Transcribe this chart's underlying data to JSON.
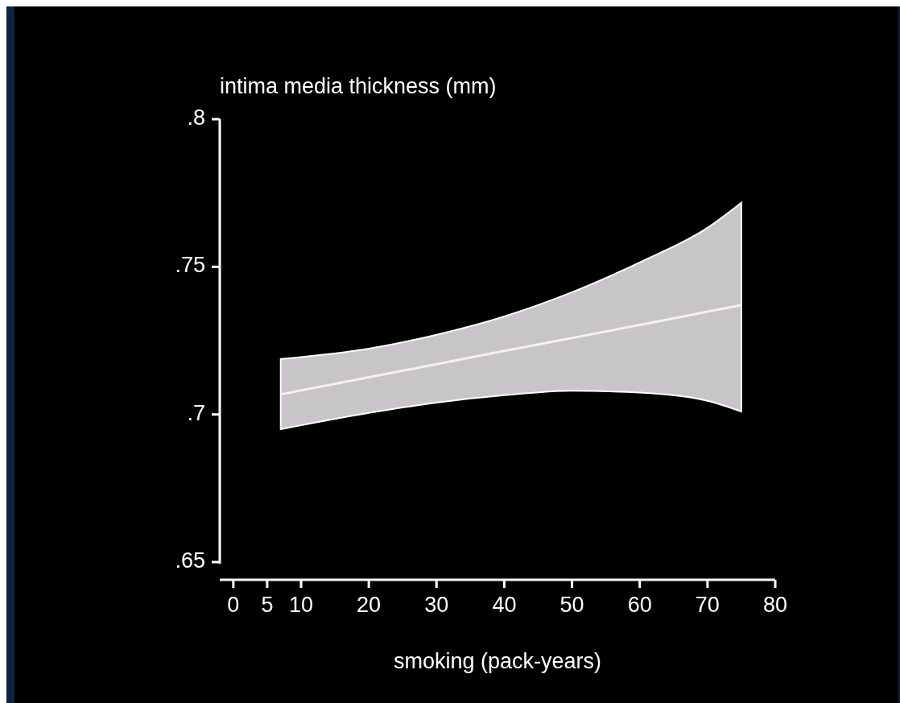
{
  "chart_data": {
    "type": "line",
    "xlabel": "smoking (pack-years)",
    "ylabel": "intima media thickness (mm)",
    "xlim": [
      -2,
      80
    ],
    "ylim": [
      0.644,
      0.8
    ],
    "xticks": [
      0,
      5,
      10,
      20,
      30,
      40,
      50,
      60,
      70,
      80
    ],
    "yticks": [
      {
        "value": 0.65,
        "label": ".65"
      },
      {
        "value": 0.7,
        "label": ".7"
      },
      {
        "value": 0.75,
        "label": ".75"
      },
      {
        "value": 0.8,
        "label": ".8"
      }
    ],
    "series": [
      {
        "color": "#f4f0f4",
        "x": [
          7,
          20,
          30,
          40,
          50,
          60,
          70,
          75
        ],
        "values": [
          0.7068,
          0.7126,
          0.717,
          0.7215,
          0.7259,
          0.7303,
          0.7348,
          0.737
        ],
        "lower": [
          0.695,
          0.7005,
          0.704,
          0.7065,
          0.708,
          0.7074,
          0.7046,
          0.701
        ],
        "upper": [
          0.7188,
          0.7223,
          0.727,
          0.7332,
          0.7414,
          0.7515,
          0.7632,
          0.7717
        ]
      }
    ]
  }
}
